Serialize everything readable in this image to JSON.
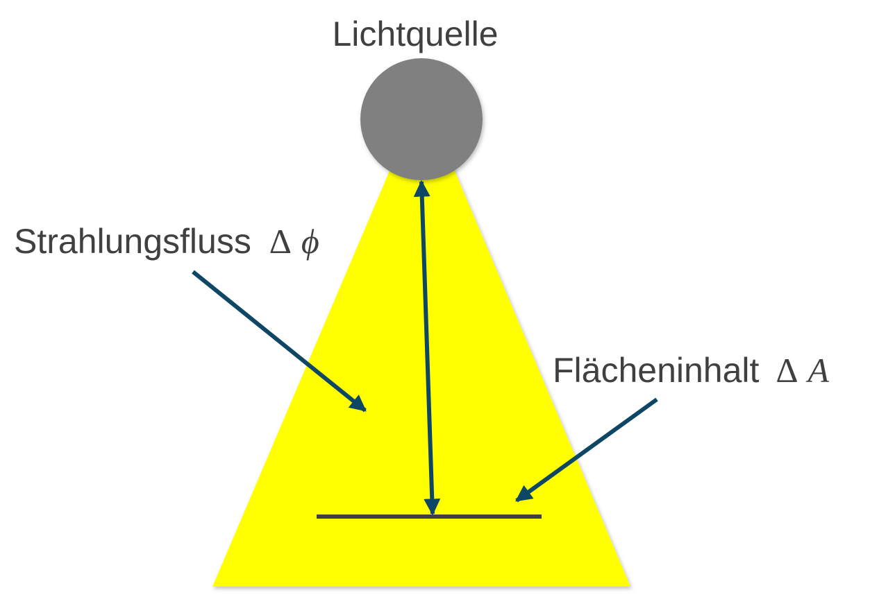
{
  "labels": {
    "source": "Lichtquelle",
    "flux_text": "Strahlungsfluss",
    "flux_symbol_delta": "Δ",
    "flux_symbol_var": "ϕ",
    "area_text": "Flächeninhalt",
    "area_symbol_delta": "Δ",
    "area_symbol_var": "A"
  },
  "colors": {
    "light_cone": "#ffff00",
    "source": "#808080",
    "arrow": "#0e4766",
    "surface": "#404040",
    "text": "#404040"
  }
}
